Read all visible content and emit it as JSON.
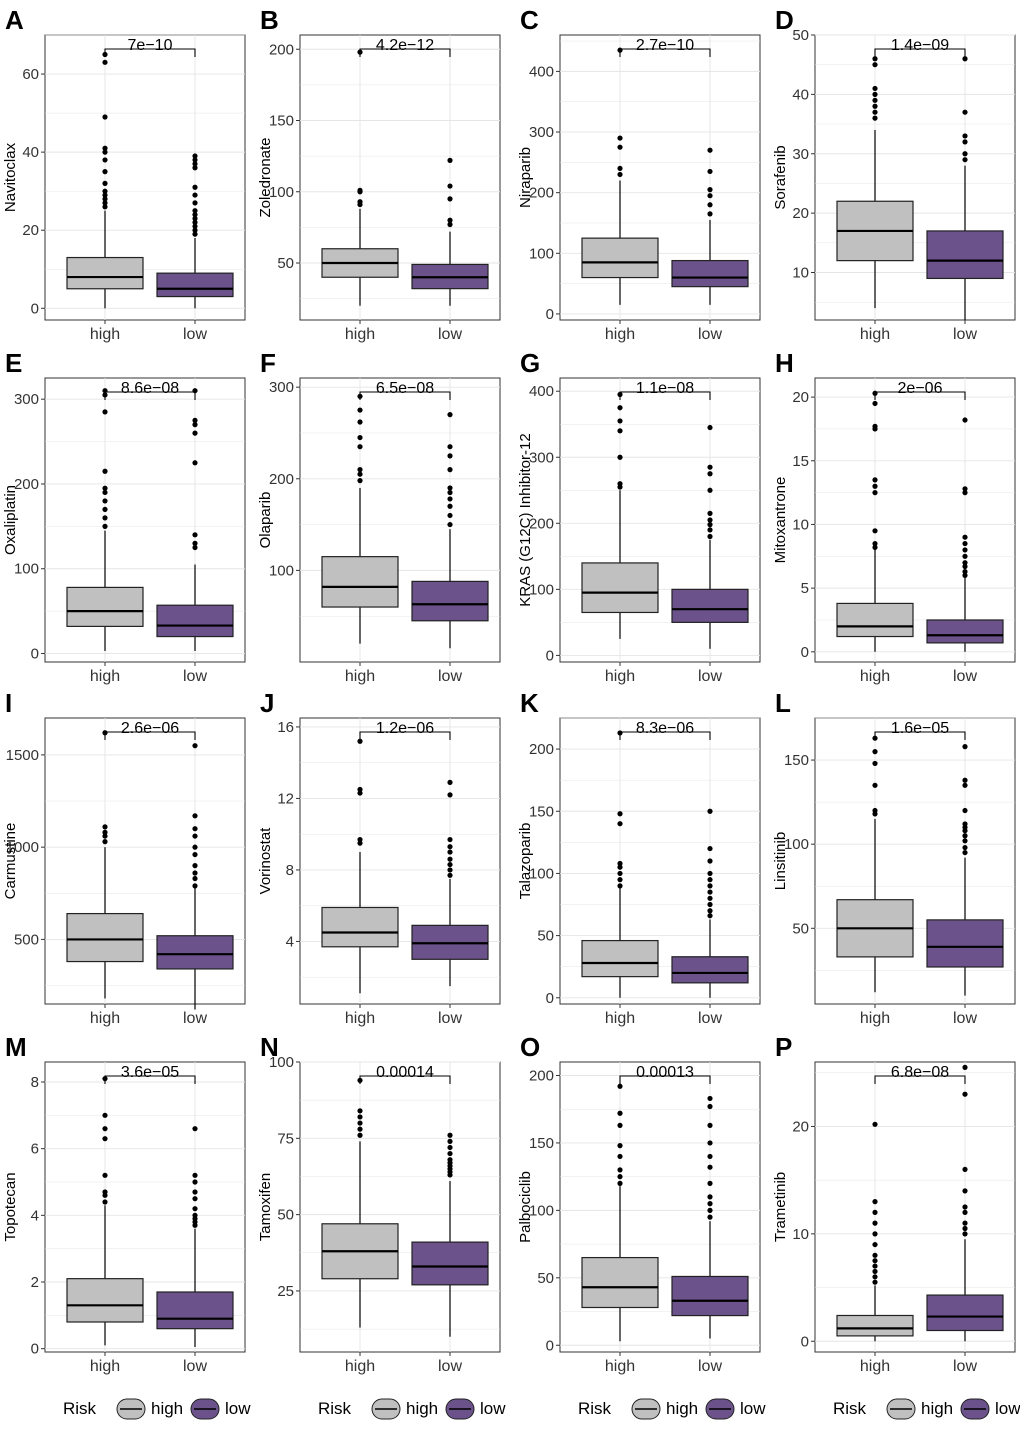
{
  "figure": {
    "legend": {
      "title": "Risk",
      "labels": [
        "high",
        "low"
      ]
    },
    "colors": {
      "high": "#c0c0c0",
      "low": "#6b528a",
      "outlier": "#000000",
      "grid": "#e5e5e5"
    }
  },
  "chart_data": [
    {
      "letter": "A",
      "type": "box",
      "ylabel": "Navitoclax",
      "pvalue": "7e−10",
      "categories": [
        "high",
        "low"
      ],
      "yticks": [
        0,
        20,
        40,
        60
      ],
      "ylim": [
        -3,
        70
      ],
      "boxes": [
        {
          "name": "high",
          "min": 0,
          "q1": 5,
          "median": 8,
          "q3": 13,
          "max": 25,
          "outliers": [
            26,
            27,
            28,
            29,
            30,
            32,
            35,
            38,
            40,
            41,
            49,
            63,
            65
          ]
        },
        {
          "name": "low",
          "min": 0,
          "q1": 3,
          "median": 5,
          "q3": 9,
          "max": 18,
          "outliers": [
            19,
            20,
            21,
            22,
            23,
            24,
            25,
            27,
            29,
            31,
            36,
            37,
            38,
            39
          ]
        }
      ]
    },
    {
      "letter": "B",
      "type": "box",
      "ylabel": "Zoledronate",
      "pvalue": "4.2e−12",
      "categories": [
        "high",
        "low"
      ],
      "yticks": [
        50,
        100,
        150,
        200
      ],
      "ylim": [
        10,
        210
      ],
      "boxes": [
        {
          "name": "high",
          "min": 20,
          "q1": 40,
          "median": 50,
          "q3": 60,
          "max": 88,
          "outliers": [
            91,
            93,
            100,
            101,
            198
          ]
        },
        {
          "name": "low",
          "min": 20,
          "q1": 32,
          "median": 40,
          "q3": 49,
          "max": 72,
          "outliers": [
            77,
            80,
            95,
            104,
            122
          ]
        }
      ]
    },
    {
      "letter": "C",
      "type": "box",
      "ylabel": "Niraparib",
      "pvalue": "2.7e−10",
      "categories": [
        "high",
        "low"
      ],
      "yticks": [
        0,
        100,
        200,
        300,
        400
      ],
      "ylim": [
        -10,
        460
      ],
      "boxes": [
        {
          "name": "high",
          "min": 15,
          "q1": 60,
          "median": 85,
          "q3": 125,
          "max": 220,
          "outliers": [
            230,
            240,
            275,
            290,
            435
          ]
        },
        {
          "name": "low",
          "min": 15,
          "q1": 45,
          "median": 60,
          "q3": 88,
          "max": 155,
          "outliers": [
            165,
            180,
            195,
            205,
            235,
            270
          ]
        }
      ]
    },
    {
      "letter": "D",
      "type": "box",
      "ylabel": "Sorafenib",
      "pvalue": "1.4e−09",
      "categories": [
        "high",
        "low"
      ],
      "yticks": [
        10,
        20,
        30,
        40,
        50
      ],
      "ylim": [
        2,
        50
      ],
      "boxes": [
        {
          "name": "high",
          "min": 4,
          "q1": 12,
          "median": 17,
          "q3": 22,
          "max": 34,
          "outliers": [
            36,
            37,
            38,
            39,
            40,
            41,
            45,
            46
          ]
        },
        {
          "name": "low",
          "min": 2,
          "q1": 9,
          "median": 12,
          "q3": 17,
          "max": 28,
          "outliers": [
            29,
            30,
            32,
            33,
            37,
            46
          ]
        }
      ]
    },
    {
      "letter": "E",
      "type": "box",
      "ylabel": "Oxaliplatin",
      "pvalue": "8.6e−08",
      "categories": [
        "high",
        "low"
      ],
      "yticks": [
        0,
        100,
        200,
        300
      ],
      "ylim": [
        -10,
        325
      ],
      "boxes": [
        {
          "name": "high",
          "min": 3,
          "q1": 32,
          "median": 50,
          "q3": 78,
          "max": 145,
          "outliers": [
            150,
            160,
            170,
            180,
            190,
            195,
            215,
            285,
            305,
            310
          ]
        },
        {
          "name": "low",
          "min": 3,
          "q1": 20,
          "median": 33,
          "q3": 57,
          "max": 105,
          "outliers": [
            125,
            130,
            140,
            225,
            260,
            270,
            275,
            310
          ]
        }
      ]
    },
    {
      "letter": "F",
      "type": "box",
      "ylabel": "Olaparib",
      "pvalue": "6.5e−08",
      "categories": [
        "high",
        "low"
      ],
      "yticks": [
        100,
        200,
        300
      ],
      "ylim": [
        0,
        310
      ],
      "boxes": [
        {
          "name": "high",
          "min": 20,
          "q1": 60,
          "median": 82,
          "q3": 115,
          "max": 190,
          "outliers": [
            198,
            205,
            210,
            235,
            245,
            262,
            275,
            290
          ]
        },
        {
          "name": "low",
          "min": 15,
          "q1": 45,
          "median": 63,
          "q3": 88,
          "max": 145,
          "outliers": [
            150,
            160,
            170,
            178,
            185,
            190,
            210,
            225,
            235,
            270
          ]
        }
      ]
    },
    {
      "letter": "G",
      "type": "box",
      "ylabel": "KRAS (G12C) Inhibitor-12",
      "pvalue": "1.1e−08",
      "categories": [
        "high",
        "low"
      ],
      "yticks": [
        0,
        100,
        200,
        300,
        400
      ],
      "ylim": [
        -10,
        420
      ],
      "boxes": [
        {
          "name": "high",
          "min": 25,
          "q1": 65,
          "median": 95,
          "q3": 140,
          "max": 250,
          "outliers": [
            255,
            260,
            300,
            340,
            355,
            375,
            395
          ]
        },
        {
          "name": "low",
          "min": 10,
          "q1": 50,
          "median": 70,
          "q3": 100,
          "max": 175,
          "outliers": [
            180,
            190,
            198,
            205,
            215,
            250,
            275,
            285,
            345
          ]
        }
      ]
    },
    {
      "letter": "H",
      "type": "box",
      "ylabel": "Mitoxantrone",
      "pvalue": "2e−06",
      "categories": [
        "high",
        "low"
      ],
      "yticks": [
        0,
        5,
        10,
        15,
        20
      ],
      "ylim": [
        -0.8,
        21.5
      ],
      "boxes": [
        {
          "name": "high",
          "min": 0,
          "q1": 1.2,
          "median": 2,
          "q3": 3.8,
          "max": 8,
          "outliers": [
            8.2,
            8.5,
            9.5,
            12.5,
            13,
            13.5,
            17.5,
            17.7,
            19.5,
            20.3
          ]
        },
        {
          "name": "low",
          "min": 0,
          "q1": 0.7,
          "median": 1.3,
          "q3": 2.5,
          "max": 5.8,
          "outliers": [
            6,
            6.3,
            6.7,
            7,
            7.5,
            8,
            8.5,
            9,
            12.5,
            12.8,
            18.2
          ]
        }
      ]
    },
    {
      "letter": "I",
      "type": "box",
      "ylabel": "Carmustine",
      "pvalue": "2.6e−06",
      "categories": [
        "high",
        "low"
      ],
      "yticks": [
        500,
        1000,
        1500
      ],
      "ylim": [
        150,
        1700
      ],
      "boxes": [
        {
          "name": "high",
          "min": 180,
          "q1": 380,
          "median": 500,
          "q3": 640,
          "max": 1000,
          "outliers": [
            1030,
            1060,
            1080,
            1110,
            1620
          ]
        },
        {
          "name": "low",
          "min": 120,
          "q1": 340,
          "median": 420,
          "q3": 520,
          "max": 780,
          "outliers": [
            790,
            830,
            860,
            900,
            960,
            1000,
            1060,
            1100,
            1170,
            1550
          ]
        }
      ]
    },
    {
      "letter": "J",
      "type": "box",
      "ylabel": "Vorinostat",
      "pvalue": "1.2e−06",
      "categories": [
        "high",
        "low"
      ],
      "yticks": [
        4,
        8,
        12,
        16
      ],
      "ylim": [
        0.5,
        16.5
      ],
      "boxes": [
        {
          "name": "high",
          "min": 1.1,
          "q1": 3.7,
          "median": 4.5,
          "q3": 5.9,
          "max": 9,
          "outliers": [
            9.5,
            9.7,
            12.3,
            12.5,
            15.2
          ]
        },
        {
          "name": "low",
          "min": 1.5,
          "q1": 3.0,
          "median": 3.9,
          "q3": 4.9,
          "max": 7.5,
          "outliers": [
            7.7,
            8.0,
            8.3,
            8.6,
            9.0,
            9.3,
            9.7,
            12.2,
            12.9
          ]
        }
      ]
    },
    {
      "letter": "K",
      "type": "box",
      "ylabel": "Talazoparib",
      "pvalue": "8.3e−06",
      "categories": [
        "high",
        "low"
      ],
      "yticks": [
        0,
        50,
        100,
        150,
        200
      ],
      "ylim": [
        -5,
        225
      ],
      "boxes": [
        {
          "name": "high",
          "min": 0,
          "q1": 17,
          "median": 28,
          "q3": 46,
          "max": 88,
          "outliers": [
            90,
            95,
            100,
            105,
            108,
            140,
            148,
            213
          ]
        },
        {
          "name": "low",
          "min": 0,
          "q1": 12,
          "median": 20,
          "q3": 33,
          "max": 63,
          "outliers": [
            66,
            70,
            75,
            80,
            85,
            90,
            95,
            100,
            110,
            120,
            150
          ]
        }
      ]
    },
    {
      "letter": "L",
      "type": "box",
      "ylabel": "Linsitinib",
      "pvalue": "1.6e−05",
      "categories": [
        "high",
        "low"
      ],
      "yticks": [
        50,
        100,
        150
      ],
      "ylim": [
        5,
        175
      ],
      "boxes": [
        {
          "name": "high",
          "min": 12,
          "q1": 33,
          "median": 50,
          "q3": 67,
          "max": 115,
          "outliers": [
            118,
            120,
            135,
            148,
            155,
            163
          ]
        },
        {
          "name": "low",
          "min": 10,
          "q1": 27,
          "median": 39,
          "q3": 55,
          "max": 92,
          "outliers": [
            95,
            98,
            102,
            105,
            108,
            110,
            112,
            120,
            135,
            138,
            158
          ]
        }
      ]
    },
    {
      "letter": "M",
      "type": "box",
      "ylabel": "Topotecan",
      "pvalue": "3.6e−05",
      "categories": [
        "high",
        "low"
      ],
      "yticks": [
        0,
        2,
        4,
        6,
        8
      ],
      "ylim": [
        -0.1,
        8.6
      ],
      "boxes": [
        {
          "name": "high",
          "min": 0.1,
          "q1": 0.8,
          "median": 1.3,
          "q3": 2.1,
          "max": 4.3,
          "outliers": [
            4.4,
            4.6,
            4.7,
            5.2,
            6.3,
            6.6,
            7.0,
            8.1
          ]
        },
        {
          "name": "low",
          "min": 0.05,
          "q1": 0.6,
          "median": 0.9,
          "q3": 1.7,
          "max": 3.6,
          "outliers": [
            3.7,
            3.8,
            3.9,
            4.0,
            4.2,
            4.5,
            4.7,
            5.0,
            5.2,
            6.6
          ]
        }
      ]
    },
    {
      "letter": "N",
      "type": "box",
      "ylabel": "Tamoxifen",
      "pvalue": "0.00014",
      "categories": [
        "high",
        "low"
      ],
      "yticks": [
        25,
        50,
        75,
        100
      ],
      "ylim": [
        5,
        100
      ],
      "boxes": [
        {
          "name": "high",
          "min": 13,
          "q1": 29,
          "median": 38,
          "q3": 47,
          "max": 74,
          "outliers": [
            76,
            78,
            80,
            82,
            84,
            94
          ]
        },
        {
          "name": "low",
          "min": 10,
          "q1": 27,
          "median": 33,
          "q3": 41,
          "max": 61,
          "outliers": [
            63,
            64,
            65,
            66,
            67,
            68,
            70,
            72,
            74,
            76
          ]
        }
      ]
    },
    {
      "letter": "O",
      "type": "box",
      "ylabel": "Palbociclib",
      "pvalue": "0.00013",
      "categories": [
        "high",
        "low"
      ],
      "yticks": [
        0,
        50,
        100,
        150,
        200
      ],
      "ylim": [
        -5,
        210
      ],
      "boxes": [
        {
          "name": "high",
          "min": 3,
          "q1": 28,
          "median": 43,
          "q3": 65,
          "max": 118,
          "outliers": [
            120,
            125,
            130,
            140,
            148,
            163,
            172,
            192
          ]
        },
        {
          "name": "low",
          "min": 5,
          "q1": 22,
          "median": 33,
          "q3": 51,
          "max": 92,
          "outliers": [
            95,
            100,
            105,
            110,
            120,
            132,
            140,
            150,
            163,
            177,
            183
          ]
        }
      ]
    },
    {
      "letter": "P",
      "type": "box",
      "ylabel": "Trametinib",
      "pvalue": "6.8e−08",
      "categories": [
        "high",
        "low"
      ],
      "yticks": [
        0,
        10,
        20
      ],
      "ylim": [
        -1,
        26
      ],
      "boxes": [
        {
          "name": "high",
          "min": 0,
          "q1": 0.5,
          "median": 1.2,
          "q3": 2.4,
          "max": 5.2,
          "outliers": [
            5.5,
            6,
            6.5,
            7,
            7.5,
            8,
            9,
            10,
            11,
            12,
            13,
            20.2
          ]
        },
        {
          "name": "low",
          "min": 0,
          "q1": 1,
          "median": 2.3,
          "q3": 4.3,
          "max": 9.5,
          "outliers": [
            10,
            10.5,
            11,
            12,
            12.5,
            14,
            16,
            23,
            25.5
          ]
        }
      ]
    }
  ]
}
